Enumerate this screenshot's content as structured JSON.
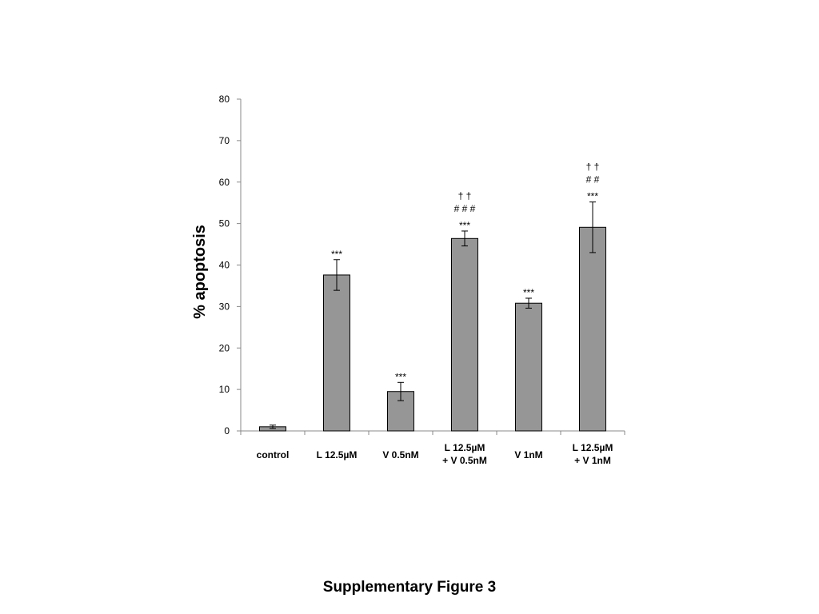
{
  "caption": "Supplementary Figure 3",
  "chart_data": {
    "type": "bar",
    "title": "",
    "xlabel": "",
    "ylabel": "% apoptosis",
    "ylim": [
      0,
      80
    ],
    "yticks": [
      0,
      10,
      20,
      30,
      40,
      50,
      60,
      70,
      80
    ],
    "grid": false,
    "bar_color": "#969696",
    "categories": [
      [
        "control"
      ],
      [
        "L 12.5µM"
      ],
      [
        "V 0.5nM"
      ],
      [
        "L 12.5µM",
        "+ V 0.5nM"
      ],
      [
        "V 1nM"
      ],
      [
        "L 12.5µM",
        "+ V 1nM"
      ]
    ],
    "values": [
      1.0,
      37.6,
      9.5,
      46.4,
      30.8,
      49.1
    ],
    "errors": [
      0.4,
      3.7,
      2.2,
      1.8,
      1.2,
      6.1
    ],
    "annotations": [
      [],
      [
        "***"
      ],
      [
        "***"
      ],
      [
        "† †",
        "# # #",
        "***"
      ],
      [
        "***"
      ],
      [
        "† †",
        "# #",
        "***"
      ]
    ]
  }
}
